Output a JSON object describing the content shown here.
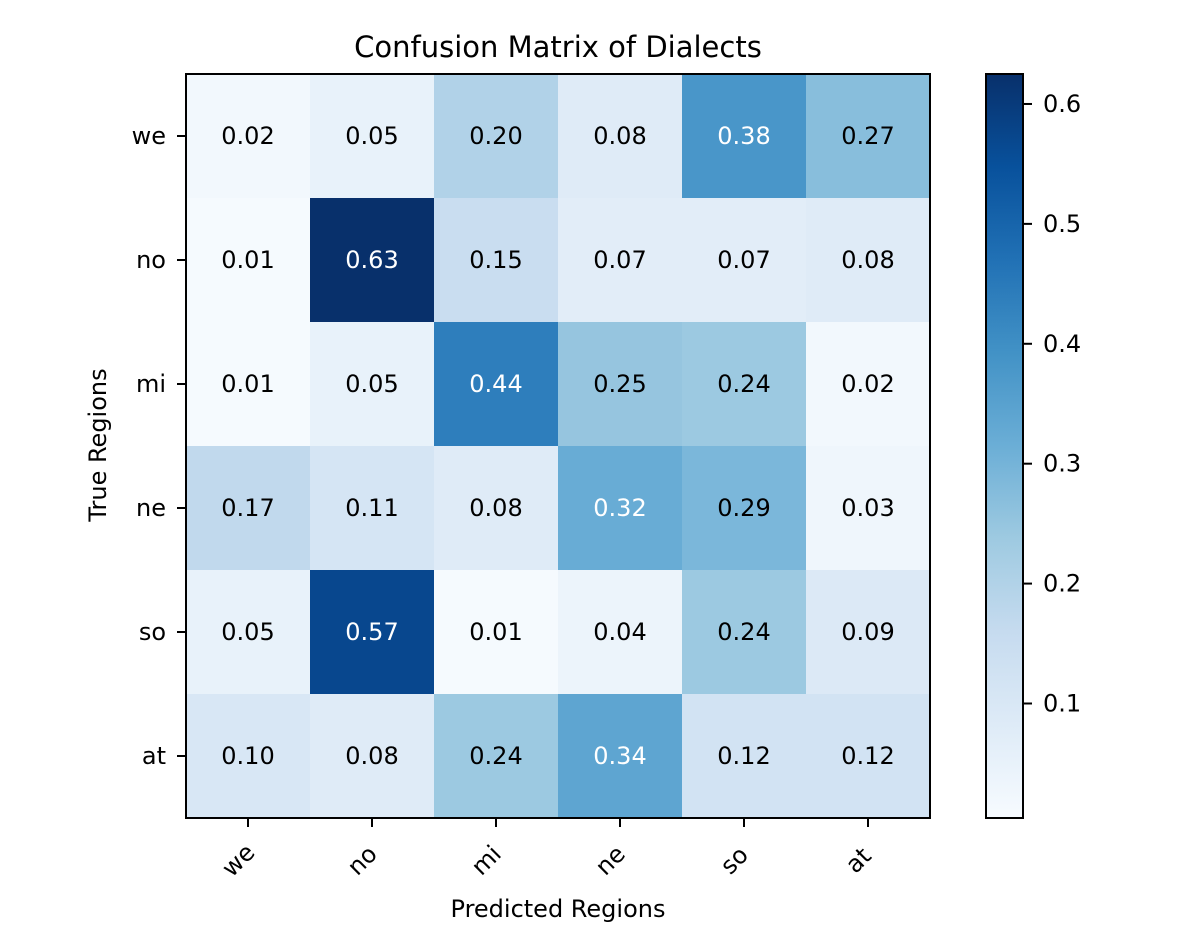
{
  "chart_data": {
    "type": "heatmap",
    "title": "Confusion Matrix of Dialects",
    "xlabel": "Predicted Regions",
    "ylabel": "True Regions",
    "x_categories": [
      "we",
      "no",
      "mi",
      "ne",
      "so",
      "at"
    ],
    "y_categories": [
      "we",
      "no",
      "mi",
      "ne",
      "so",
      "at"
    ],
    "values": [
      [
        0.02,
        0.05,
        0.2,
        0.08,
        0.38,
        0.27
      ],
      [
        0.01,
        0.63,
        0.15,
        0.07,
        0.07,
        0.08
      ],
      [
        0.01,
        0.05,
        0.44,
        0.25,
        0.24,
        0.02
      ],
      [
        0.17,
        0.11,
        0.08,
        0.32,
        0.29,
        0.03
      ],
      [
        0.05,
        0.57,
        0.01,
        0.04,
        0.24,
        0.09
      ],
      [
        0.1,
        0.08,
        0.24,
        0.34,
        0.12,
        0.12
      ]
    ],
    "value_format": "0.00",
    "colormap": "Blues",
    "colormap_stops": [
      "#f7fbff",
      "#deebf7",
      "#c6dbef",
      "#9ecae1",
      "#6baed6",
      "#4292c6",
      "#2171b5",
      "#08519c",
      "#08306b"
    ],
    "color_range": [
      0.0045,
      0.625
    ],
    "colorbar": {
      "ticks": [
        "0.1",
        "0.2",
        "0.3",
        "0.4",
        "0.5",
        "0.6"
      ]
    },
    "text_colors": {
      "dark": "#000000",
      "light": "#ffffff"
    },
    "text_threshold": 0.315,
    "x_tick_rotation": -45
  }
}
